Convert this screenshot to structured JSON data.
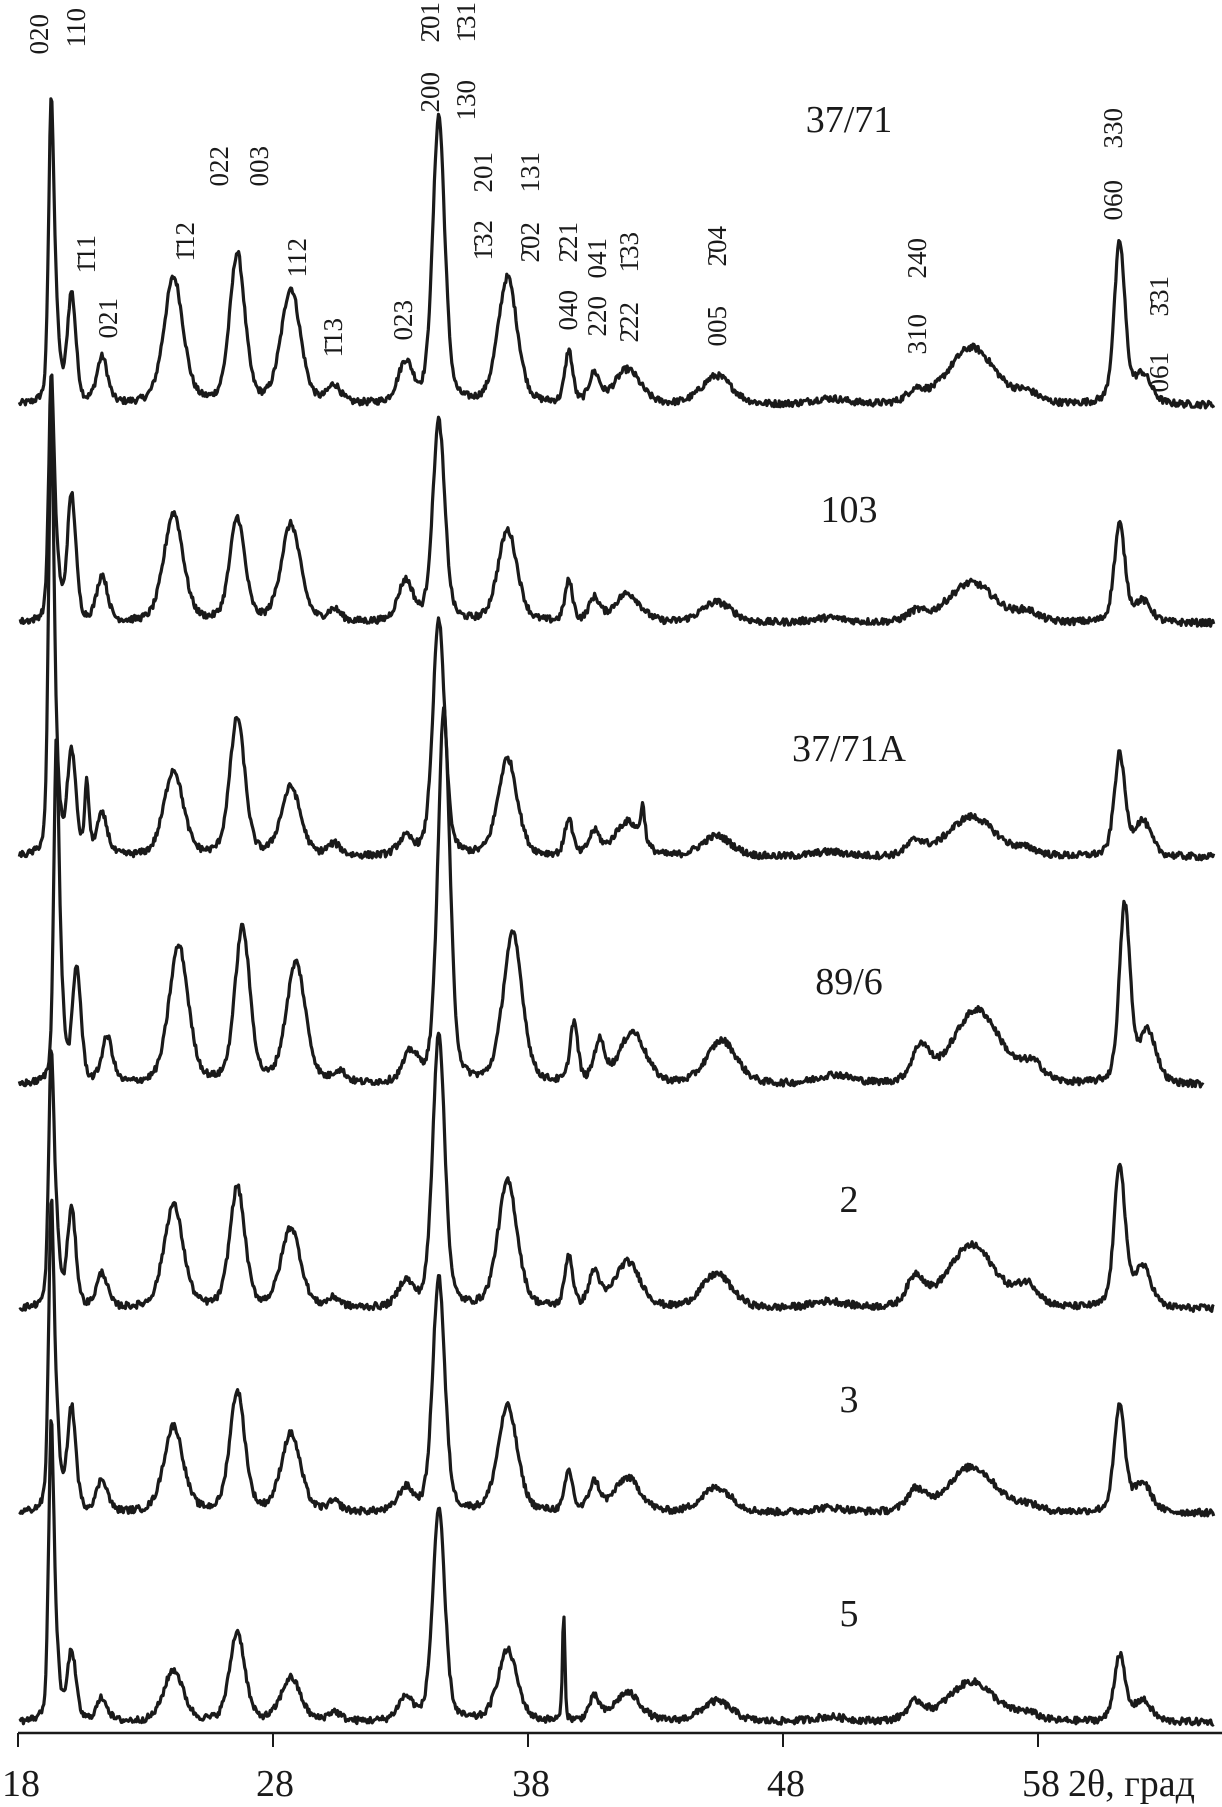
{
  "chart_data": {
    "type": "line",
    "xlabel": "2θ, град",
    "xlim": [
      18,
      65
    ],
    "x_ticks": [
      "18",
      "28",
      "38",
      "48",
      "58"
    ],
    "y_axis": "none (stacked patterns, arbitrary intensity)",
    "grid": false,
    "line_color": "#1a1a1a",
    "peak_positions_2theta": [
      19.3,
      19.5,
      20.1,
      20.7,
      21.3,
      24.1,
      26.6,
      28.7,
      30.4,
      33.2,
      34.5,
      37.2,
      39.4,
      39.6,
      40.6,
      41.9,
      42.5,
      45.4,
      49.8,
      53.2,
      55.4,
      57.6,
      61.2,
      62.1
    ],
    "peak_hwhm_deg": [
      0.12,
      0.15,
      0.2,
      0.1,
      0.25,
      0.45,
      0.35,
      0.45,
      0.3,
      0.35,
      0.28,
      0.45,
      0.06,
      0.18,
      0.25,
      0.6,
      0.1,
      0.7,
      0.8,
      0.4,
      1.1,
      0.5,
      0.25,
      0.4
    ],
    "series": [
      {
        "name": "37/71",
        "shift": 0,
        "intensities": [
          250,
          60,
          95,
          0,
          40,
          110,
          130,
          100,
          15,
          35,
          250,
          110,
          0,
          45,
          25,
          30,
          0,
          25,
          5,
          10,
          50,
          8,
          140,
          25
        ]
      },
      {
        "name": "103",
        "shift": 0,
        "intensities": [
          200,
          50,
          110,
          0,
          40,
          95,
          90,
          85,
          10,
          35,
          175,
          80,
          0,
          35,
          20,
          25,
          0,
          18,
          4,
          8,
          35,
          8,
          85,
          18
        ]
      },
      {
        "name": "37/71A",
        "shift": 0,
        "intensities": [
          370,
          60,
          90,
          60,
          35,
          75,
          120,
          60,
          10,
          15,
          205,
          85,
          0,
          32,
          20,
          30,
          30,
          18,
          4,
          12,
          35,
          5,
          88,
          30
        ]
      },
      {
        "name": "89/6",
        "shift": 0.2,
        "intensities": [
          280,
          60,
          100,
          0,
          40,
          120,
          135,
          105,
          10,
          25,
          325,
          130,
          0,
          52,
          35,
          45,
          0,
          38,
          8,
          30,
          65,
          15,
          155,
          45
        ]
      },
      {
        "name": "2",
        "shift": 0,
        "intensities": [
          205,
          60,
          85,
          0,
          30,
          90,
          105,
          70,
          8,
          22,
          240,
          110,
          0,
          45,
          30,
          40,
          0,
          30,
          6,
          25,
          55,
          18,
          125,
          35
        ]
      },
      {
        "name": "3",
        "shift": 0,
        "intensities": [
          250,
          70,
          90,
          0,
          28,
          75,
          105,
          68,
          8,
          20,
          205,
          92,
          0,
          35,
          25,
          30,
          0,
          22,
          4,
          18,
          40,
          5,
          92,
          25
        ]
      },
      {
        "name": "5",
        "shift": 0,
        "intensities": [
          245,
          50,
          60,
          0,
          20,
          45,
          78,
          38,
          8,
          20,
          185,
          62,
          90,
          0,
          20,
          25,
          0,
          18,
          4,
          15,
          35,
          6,
          58,
          18
        ]
      }
    ],
    "annotations": [
      "020",
      "110",
      "1̄11",
      "021",
      "1̄12",
      "022",
      "003",
      "112",
      "1̄13",
      "023",
      "2̄01",
      "200",
      "1̄31",
      "130",
      "201",
      "1̄32",
      "131",
      "2̄02",
      "2̄21",
      "040",
      "041",
      "220",
      "1̄33",
      "2̄22",
      "2̄04",
      "005",
      "240",
      "310",
      "330",
      "060",
      "3̄31",
      "061"
    ]
  }
}
